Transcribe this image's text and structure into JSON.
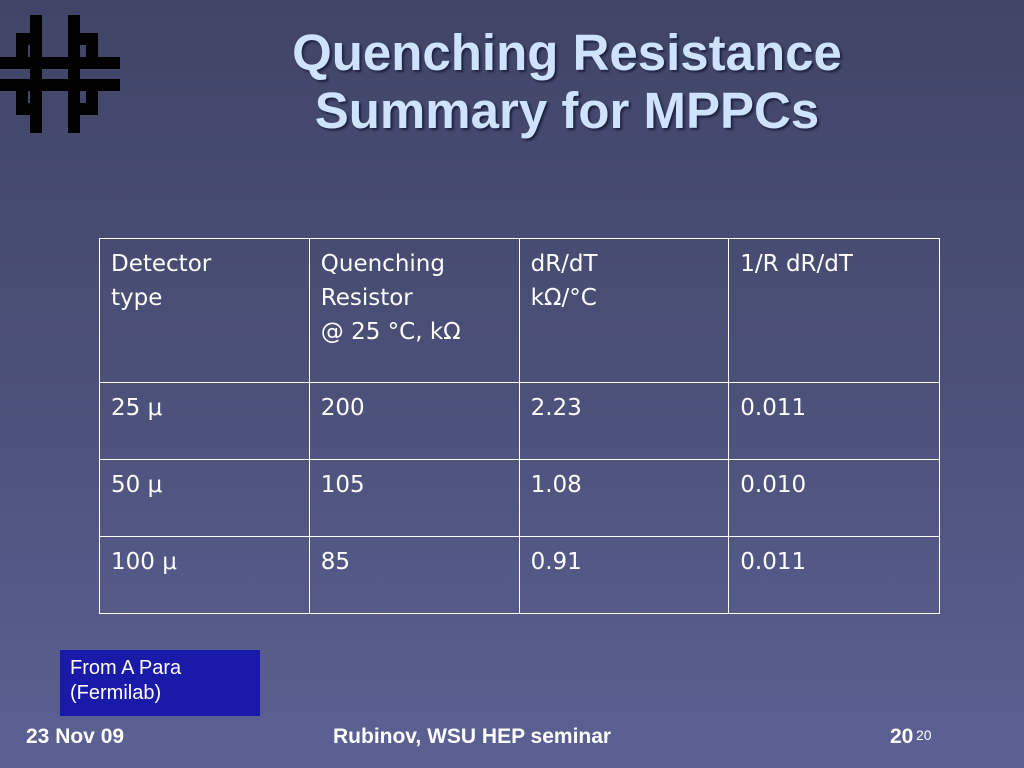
{
  "slide": {
    "title_line1": "Quenching Resistance",
    "title_line2": "Summary for MPPCs",
    "logo": "fermilab-logo"
  },
  "table": {
    "header": [
      {
        "lines": [
          "Detector",
          "type"
        ]
      },
      {
        "lines": [
          "Quenching",
          "Resistor",
          "@ 25 °C, kΩ"
        ]
      },
      {
        "lines": [
          "dR/dT",
          "kΩ/°C"
        ]
      },
      {
        "lines": [
          "1/R dR/dT"
        ]
      }
    ],
    "rows": [
      [
        "25 μ",
        "200",
        "2.23",
        "0.011"
      ],
      [
        "50 μ",
        "105",
        "1.08",
        "0.010"
      ],
      [
        "100 μ",
        "85",
        "0.91",
        "0.011"
      ]
    ]
  },
  "note": {
    "line1": "From A Para",
    "line2": "(Fermilab)"
  },
  "footer": {
    "date": "23 Nov 09",
    "center": "Rubinov, WSU HEP seminar",
    "page": "20",
    "page_sup": "20"
  },
  "colors": {
    "title": "#cfe3ff",
    "note_bg": "#1a1aa8"
  }
}
